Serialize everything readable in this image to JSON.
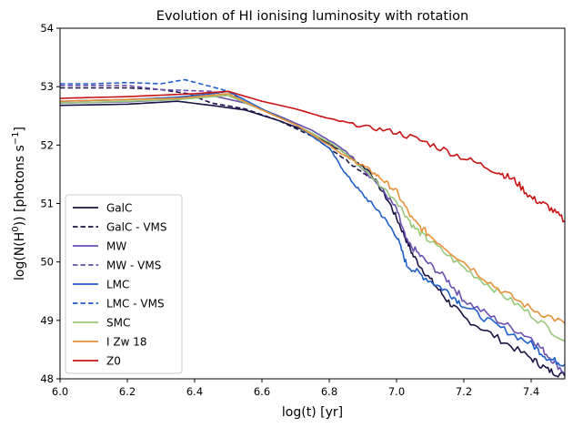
{
  "chart_data": {
    "type": "line",
    "title": "Evolution of HI ionising luminosity with rotation",
    "xlabel": "log(t) [yr]",
    "ylabel_parts": {
      "pre": "log(N(H",
      "sup1": "0",
      "mid": ")) [photons s",
      "sup2": "−1",
      "post": "]"
    },
    "xlim": [
      6.0,
      7.5
    ],
    "ylim": [
      48,
      54
    ],
    "xticks": [
      "6.0",
      "6.2",
      "6.4",
      "6.6",
      "6.8",
      "7.0",
      "7.2",
      "7.4"
    ],
    "yticks": [
      "48",
      "49",
      "50",
      "51",
      "52",
      "53",
      "54"
    ],
    "grid": false,
    "legend_position": "lower-left",
    "series": [
      {
        "name": "GalC",
        "color": "#1a1446",
        "dash": "solid",
        "x": [
          6.0,
          6.2,
          6.35,
          6.45,
          6.55,
          6.65,
          6.75,
          6.85,
          6.92,
          6.98,
          7.02,
          7.05,
          7.1,
          7.15,
          7.2,
          7.3,
          7.4,
          7.45,
          7.5
        ],
        "y": [
          52.68,
          52.7,
          52.75,
          52.68,
          52.6,
          52.42,
          52.2,
          51.85,
          51.55,
          51.0,
          50.5,
          50.1,
          49.7,
          49.35,
          49.05,
          48.7,
          48.35,
          48.15,
          48.05
        ]
      },
      {
        "name": "GalC - VMS",
        "color": "#1a1446",
        "dash": "dashed",
        "x": [
          6.0,
          6.2,
          6.3,
          6.38,
          6.45,
          6.55,
          6.65,
          6.75,
          6.85,
          6.92
        ],
        "y": [
          52.98,
          52.98,
          52.95,
          52.88,
          52.72,
          52.62,
          52.42,
          52.15,
          51.75,
          51.45
        ]
      },
      {
        "name": "MW",
        "color": "#6a4fb0",
        "dash": "solid",
        "x": [
          6.0,
          6.2,
          6.35,
          6.45,
          6.55,
          6.65,
          6.75,
          6.85,
          6.95,
          7.0,
          7.03,
          7.08,
          7.15,
          7.2,
          7.3,
          7.4,
          7.45,
          7.5
        ],
        "y": [
          52.72,
          52.74,
          52.78,
          52.85,
          52.72,
          52.5,
          52.25,
          51.9,
          51.3,
          50.9,
          50.35,
          50.05,
          49.7,
          49.35,
          49.0,
          48.7,
          48.4,
          48.1
        ]
      },
      {
        "name": "MW - VMS",
        "color": "#6a4fb0",
        "dash": "dashed",
        "x": [
          6.0,
          6.2,
          6.3,
          6.4,
          6.45,
          6.5,
          6.55
        ],
        "y": [
          53.02,
          53.02,
          52.95,
          52.93,
          52.92,
          52.85,
          52.72
        ]
      },
      {
        "name": "LMC",
        "color": "#1f5fc8",
        "dash": "solid",
        "x": [
          6.0,
          6.2,
          6.35,
          6.45,
          6.5,
          6.6,
          6.7,
          6.8,
          6.85,
          6.9,
          6.95,
          7.0,
          7.03,
          7.08,
          7.15,
          7.2,
          7.3,
          7.4,
          7.45,
          7.5
        ],
        "y": [
          52.75,
          52.78,
          52.82,
          52.88,
          52.92,
          52.62,
          52.35,
          51.95,
          51.5,
          51.15,
          50.85,
          50.45,
          49.95,
          49.75,
          49.5,
          49.25,
          48.9,
          48.6,
          48.35,
          48.25
        ]
      },
      {
        "name": "LMC - VMS",
        "color": "#1f5fc8",
        "dash": "dashed",
        "x": [
          6.0,
          6.1,
          6.2,
          6.3,
          6.37,
          6.45,
          6.5,
          6.55
        ],
        "y": [
          53.05,
          53.05,
          53.07,
          53.05,
          53.12,
          53.0,
          52.92,
          52.72
        ]
      },
      {
        "name": "SMC",
        "color": "#98c97a",
        "dash": "solid",
        "x": [
          6.0,
          6.2,
          6.35,
          6.5,
          6.6,
          6.7,
          6.8,
          6.85,
          6.9,
          7.0,
          7.05,
          7.1,
          7.2,
          7.3,
          7.4,
          7.5
        ],
        "y": [
          52.72,
          52.75,
          52.78,
          52.85,
          52.6,
          52.35,
          52.05,
          51.85,
          51.6,
          51.05,
          50.6,
          50.35,
          49.9,
          49.5,
          49.1,
          48.65
        ]
      },
      {
        "name": "I Zw 18",
        "color": "#e8913a",
        "dash": "solid",
        "x": [
          6.0,
          6.2,
          6.35,
          6.5,
          6.6,
          6.7,
          6.8,
          6.85,
          6.9,
          6.95,
          7.0,
          7.05,
          7.1,
          7.2,
          7.3,
          7.4,
          7.5
        ],
        "y": [
          52.75,
          52.78,
          52.8,
          52.88,
          52.6,
          52.35,
          52.0,
          51.8,
          51.65,
          51.45,
          51.2,
          50.7,
          50.45,
          50.0,
          49.55,
          49.2,
          48.95
        ]
      },
      {
        "name": "Z0",
        "color": "#c81414",
        "dash": "solid",
        "x": [
          6.0,
          6.2,
          6.4,
          6.5,
          6.6,
          6.7,
          6.8,
          6.9,
          7.0,
          7.1,
          7.2,
          7.3,
          7.35,
          7.4,
          7.45,
          7.5
        ],
        "y": [
          52.8,
          52.83,
          52.88,
          52.92,
          52.75,
          52.62,
          52.45,
          52.32,
          52.22,
          52.02,
          51.78,
          51.55,
          51.4,
          51.1,
          50.95,
          50.7
        ]
      }
    ]
  }
}
